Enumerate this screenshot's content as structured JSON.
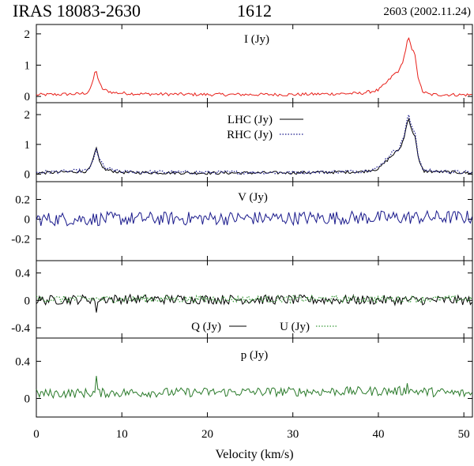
{
  "header": {
    "object_name": "IRAS 18083-2630",
    "frequency": "1612",
    "observation": "2603 (2002.11.24)"
  },
  "colors": {
    "stokes_i": "#e8201a",
    "lhc": "#000000",
    "rhc": "#1a1a8c",
    "stokes_v": "#1a1a8c",
    "stokes_q": "#000000",
    "stokes_u": "#3a9a3a",
    "polarized_p": "#2a7a2a"
  },
  "chart_data": {
    "type": "line",
    "xlabel": "Velocity (km/s)",
    "xlim": [
      0,
      51
    ],
    "xticks": [
      0,
      10,
      20,
      30,
      40,
      50
    ],
    "grid": false,
    "panels": [
      {
        "id": "I",
        "label": "I (Jy)",
        "ylim": [
          -0.2,
          2.3
        ],
        "yticks": [
          0,
          1,
          2
        ],
        "series": [
          {
            "name": "I (Jy)",
            "color": "#e8201a",
            "style": "solid",
            "points": [
              [
                0,
                0.05
              ],
              [
                5,
                0.08
              ],
              [
                6,
                0.12
              ],
              [
                6.5,
                0.35
              ],
              [
                6.8,
                0.72
              ],
              [
                7.0,
                0.85
              ],
              [
                7.3,
                0.45
              ],
              [
                7.8,
                0.22
              ],
              [
                9,
                0.12
              ],
              [
                12,
                0.08
              ],
              [
                20,
                0.06
              ],
              [
                30,
                0.06
              ],
              [
                38,
                0.1
              ],
              [
                40,
                0.2
              ],
              [
                41,
                0.45
              ],
              [
                41.8,
                0.7
              ],
              [
                42.5,
                0.85
              ],
              [
                43,
                1.25
              ],
              [
                43.5,
                1.9
              ],
              [
                43.9,
                1.5
              ],
              [
                44.3,
                1.35
              ],
              [
                44.7,
                0.5
              ],
              [
                45.2,
                0.15
              ],
              [
                46,
                0.06
              ],
              [
                51,
                0.05
              ]
            ]
          }
        ]
      },
      {
        "id": "LR",
        "ylim": [
          -0.25,
          2.4
        ],
        "yticks": [
          0,
          1,
          2
        ],
        "series": [
          {
            "name": "LHC (Jy)",
            "color": "#000000",
            "style": "solid",
            "points": [
              [
                0,
                0.04
              ],
              [
                6,
                0.1
              ],
              [
                6.5,
                0.35
              ],
              [
                7.0,
                0.88
              ],
              [
                7.4,
                0.4
              ],
              [
                8,
                0.15
              ],
              [
                10,
                0.06
              ],
              [
                20,
                0.04
              ],
              [
                30,
                0.05
              ],
              [
                38,
                0.08
              ],
              [
                40,
                0.18
              ],
              [
                41.5,
                0.6
              ],
              [
                42.5,
                0.85
              ],
              [
                43,
                1.2
              ],
              [
                43.5,
                1.95
              ],
              [
                43.9,
                1.45
              ],
              [
                44.3,
                1.3
              ],
              [
                44.7,
                0.45
              ],
              [
                45.3,
                0.1
              ],
              [
                51,
                0.04
              ]
            ]
          },
          {
            "name": "RHC (Jy)",
            "color": "#1a1a8c",
            "style": "dotted",
            "points": [
              [
                0,
                0.06
              ],
              [
                6,
                0.12
              ],
              [
                6.6,
                0.4
              ],
              [
                7.0,
                0.82
              ],
              [
                7.5,
                0.45
              ],
              [
                8,
                0.2
              ],
              [
                10,
                0.08
              ],
              [
                20,
                0.06
              ],
              [
                30,
                0.06
              ],
              [
                38,
                0.1
              ],
              [
                40,
                0.22
              ],
              [
                41.5,
                0.7
              ],
              [
                42.5,
                0.9
              ],
              [
                43,
                1.3
              ],
              [
                43.5,
                2.02
              ],
              [
                43.9,
                1.55
              ],
              [
                44.3,
                1.4
              ],
              [
                44.7,
                0.55
              ],
              [
                45.3,
                0.12
              ],
              [
                51,
                0.05
              ]
            ]
          }
        ]
      },
      {
        "id": "V",
        "label": "V (Jy)",
        "ylim": [
          -0.42,
          0.38
        ],
        "yticks": [
          0.2,
          0,
          -0.2
        ],
        "series": [
          {
            "name": "V (Jy)",
            "color": "#1a1a8c",
            "style": "solid",
            "points": [
              [
                0,
                0.0
              ],
              [
                51,
                0.02
              ]
            ]
          }
        ]
      },
      {
        "id": "QU",
        "ylim": [
          -0.55,
          0.58
        ],
        "yticks": [
          0.4,
          0,
          -0.4
        ],
        "series": [
          {
            "name": "Q (Jy)",
            "color": "#000000",
            "style": "solid",
            "points": [
              [
                0,
                0.0
              ],
              [
                6.9,
                0.02
              ],
              [
                7.05,
                -0.3
              ],
              [
                7.2,
                0.02
              ],
              [
                51,
                0.0
              ]
            ]
          },
          {
            "name": "U (Jy)",
            "color": "#3a9a3a",
            "style": "dotted",
            "points": [
              [
                0,
                0.02
              ],
              [
                51,
                0.02
              ]
            ]
          }
        ]
      },
      {
        "id": "p",
        "label": "p (Jy)",
        "ylim": [
          -0.2,
          0.65
        ],
        "yticks": [
          0.4,
          0
        ],
        "series": [
          {
            "name": "p (Jy)",
            "color": "#2a7a2a",
            "style": "solid",
            "points": [
              [
                0,
                0.05
              ],
              [
                6.9,
                0.06
              ],
              [
                7.05,
                0.28
              ],
              [
                7.2,
                0.06
              ],
              [
                43.2,
                0.08
              ],
              [
                43.4,
                0.2
              ],
              [
                43.6,
                0.08
              ],
              [
                51,
                0.05
              ]
            ]
          }
        ]
      }
    ]
  }
}
